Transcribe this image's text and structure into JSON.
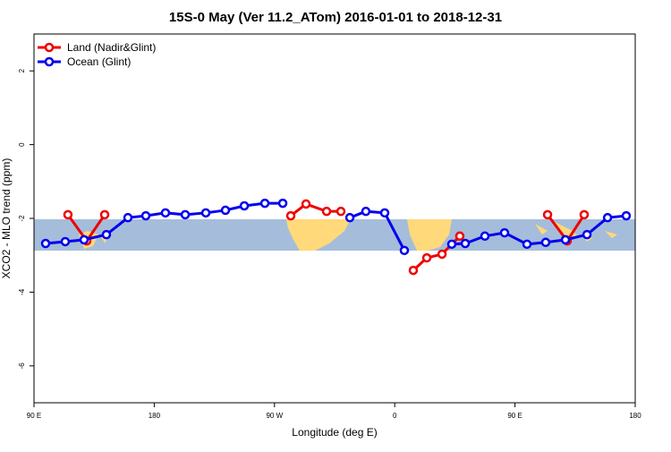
{
  "chart_data": {
    "type": "line",
    "title": "15S-0 May (Ver 11.2_ATom)   2016-01-01 to 2018-12-31",
    "x_label": "Longitude (deg E)",
    "y_label": "XCO2 - MLO trend (ppm)",
    "xlim": [
      90,
      540
    ],
    "ylim": [
      -7,
      3
    ],
    "xticks": [
      {
        "value": 90,
        "label": "90 E"
      },
      180,
      {
        "value": 270,
        "label": "90 W"
      },
      {
        "value": 360,
        "label": "0"
      },
      {
        "value": 450,
        "label": "90 E"
      },
      {
        "value": 540,
        "label": "180"
      }
    ],
    "yticks": [
      2,
      0,
      -2,
      -4,
      -6
    ],
    "legend": "top-left",
    "series": [
      {
        "name": "Land (Nadir&Glint)",
        "color": "#ee0000",
        "x": [
          115.4,
          129.5,
          142.9,
          null,
          282.2,
          293.6,
          309.0,
          319.7,
          null,
          373.9,
          384.0,
          395.4,
          408.7,
          null,
          474.4,
          489.1,
          501.8
        ],
        "values": [
          -1.9,
          -2.61,
          -1.9,
          null,
          -1.93,
          -1.61,
          -1.81,
          -1.81,
          null,
          -3.41,
          -3.07,
          -2.97,
          -2.48,
          null,
          -1.9,
          -2.61,
          -1.9
        ]
      },
      {
        "name": "Ocean (Glint)",
        "color": "#0000ee",
        "x": [
          98.7,
          113.4,
          127.5,
          144.2,
          160.3,
          173.7,
          188.4,
          203.2,
          218.6,
          233.3,
          247.4,
          262.8,
          276.2,
          null,
          326.4,
          338.4,
          352.5,
          367.2,
          null,
          402.7,
          412.8,
          427.5,
          442.2,
          459.0,
          473.0,
          487.8,
          503.9,
          519.3,
          533.3
        ],
        "values": [
          -2.68,
          -2.63,
          -2.58,
          -2.44,
          -1.98,
          -1.93,
          -1.85,
          -1.9,
          -1.85,
          -1.78,
          -1.66,
          -1.59,
          -1.59,
          null,
          -1.98,
          -1.81,
          -1.85,
          -2.87,
          null,
          -2.7,
          -2.68,
          -2.48,
          -2.39,
          -2.7,
          -2.65,
          -2.58,
          -2.44,
          -1.98,
          -1.93
        ]
      }
    ]
  }
}
